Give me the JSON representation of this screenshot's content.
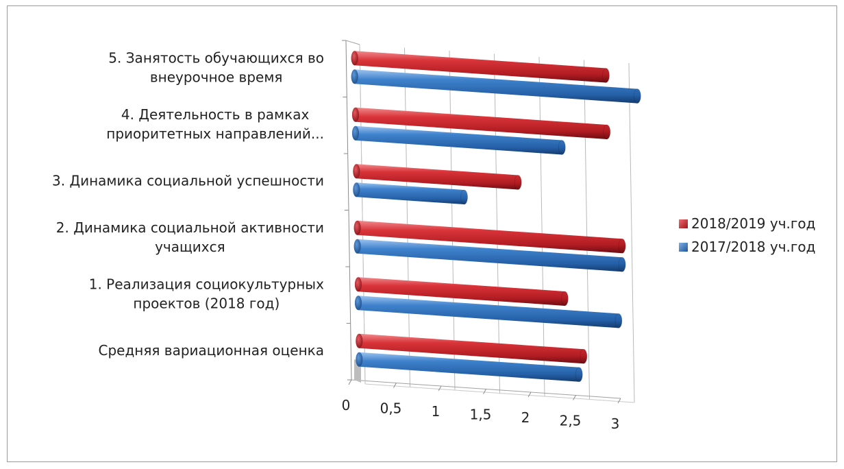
{
  "chart_data": {
    "type": "bar",
    "orientation": "horizontal",
    "style": "3d-cylinder",
    "categories": [
      [
        "5. Занятость обучающихся во",
        "внеурочное время"
      ],
      [
        "4. Деятельность в рамках",
        "приоритетных направлений..."
      ],
      [
        "3. Динамика социальной успешности"
      ],
      [
        "2. Динамика социальной активности",
        "учащихся"
      ],
      [
        "1. Реализация социокультурных",
        "проектов (2018 год)"
      ],
      [
        "Средняя вариационная оценка"
      ]
    ],
    "series": [
      {
        "name": "2018/2019 уч.год",
        "color": "#c8232b",
        "values": [
          2.8,
          2.8,
          1.8,
          2.95,
          2.3,
          2.5
        ]
      },
      {
        "name": "2017/2018 уч.год",
        "color": "#2f6fb7",
        "values": [
          3.15,
          2.3,
          1.2,
          2.95,
          2.9,
          2.45
        ]
      }
    ],
    "x_ticks": [
      "0",
      "0,5",
      "1",
      "1,5",
      "2",
      "2,5",
      "3"
    ],
    "xlim": [
      0,
      3
    ],
    "grid": true,
    "legend_position": "right"
  }
}
